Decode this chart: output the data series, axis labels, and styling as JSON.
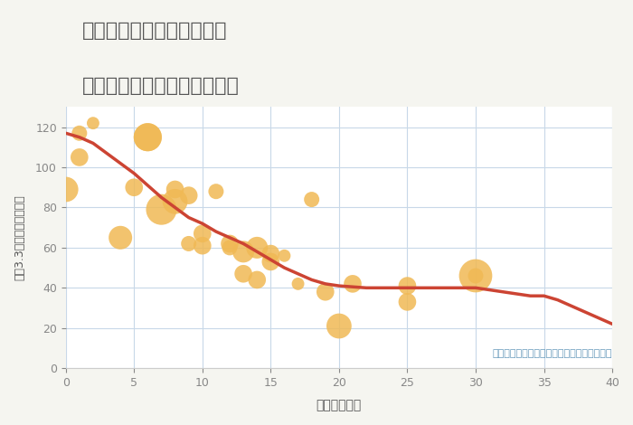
{
  "title_line1": "兵庫県姫路市安富町皆河の",
  "title_line2": "築年数別中古マンション価格",
  "xlabel": "築年数（年）",
  "ylabel": "坪（3.3㎡）単価（万円）",
  "annotation": "円の大きさは、取引のあった物件面積を示す",
  "bg_color": "#f5f5f0",
  "plot_bg_color": "#ffffff",
  "grid_color": "#c8d8e8",
  "title_color": "#555555",
  "xlabel_color": "#555555",
  "ylabel_color": "#555555",
  "annotation_color": "#6699bb",
  "scatter_color": "#f0b955",
  "scatter_alpha": 0.85,
  "line_color": "#cc4433",
  "line_width": 2.5,
  "xlim": [
    0,
    40
  ],
  "ylim": [
    0,
    130
  ],
  "xticks": [
    0,
    5,
    10,
    15,
    20,
    25,
    30,
    35,
    40
  ],
  "yticks": [
    0,
    20,
    40,
    60,
    80,
    100,
    120
  ],
  "scatter_x": [
    0,
    1,
    1,
    2,
    4,
    5,
    6,
    6,
    7,
    8,
    8,
    9,
    9,
    10,
    10,
    11,
    12,
    12,
    13,
    13,
    14,
    14,
    15,
    15,
    16,
    17,
    18,
    19,
    20,
    21,
    25,
    25,
    30,
    30
  ],
  "scatter_y": [
    89,
    105,
    117,
    122,
    65,
    90,
    115,
    115,
    79,
    83,
    89,
    86,
    62,
    61,
    67,
    88,
    60,
    62,
    47,
    58,
    60,
    44,
    57,
    53,
    56,
    42,
    84,
    38,
    21,
    42,
    33,
    41,
    46,
    46
  ],
  "scatter_size": [
    400,
    200,
    150,
    100,
    350,
    200,
    500,
    500,
    600,
    400,
    200,
    200,
    150,
    200,
    200,
    150,
    150,
    200,
    200,
    300,
    300,
    200,
    200,
    200,
    100,
    100,
    150,
    200,
    400,
    200,
    200,
    200,
    150,
    700
  ],
  "line_x": [
    0,
    1,
    2,
    3,
    4,
    5,
    6,
    7,
    8,
    9,
    10,
    11,
    12,
    13,
    14,
    15,
    16,
    17,
    18,
    19,
    20,
    21,
    22,
    23,
    24,
    25,
    26,
    27,
    28,
    29,
    30,
    31,
    32,
    33,
    34,
    35,
    36,
    37,
    38,
    39,
    40
  ],
  "line_y": [
    117,
    115,
    112,
    107,
    102,
    97,
    91,
    85,
    80,
    75,
    72,
    68,
    65,
    62,
    58,
    54,
    50,
    47,
    44,
    42,
    41,
    40.5,
    40,
    40,
    40,
    40,
    40,
    40,
    40,
    40,
    40,
    39,
    38,
    37,
    36,
    36,
    34,
    31,
    28,
    25,
    22
  ]
}
